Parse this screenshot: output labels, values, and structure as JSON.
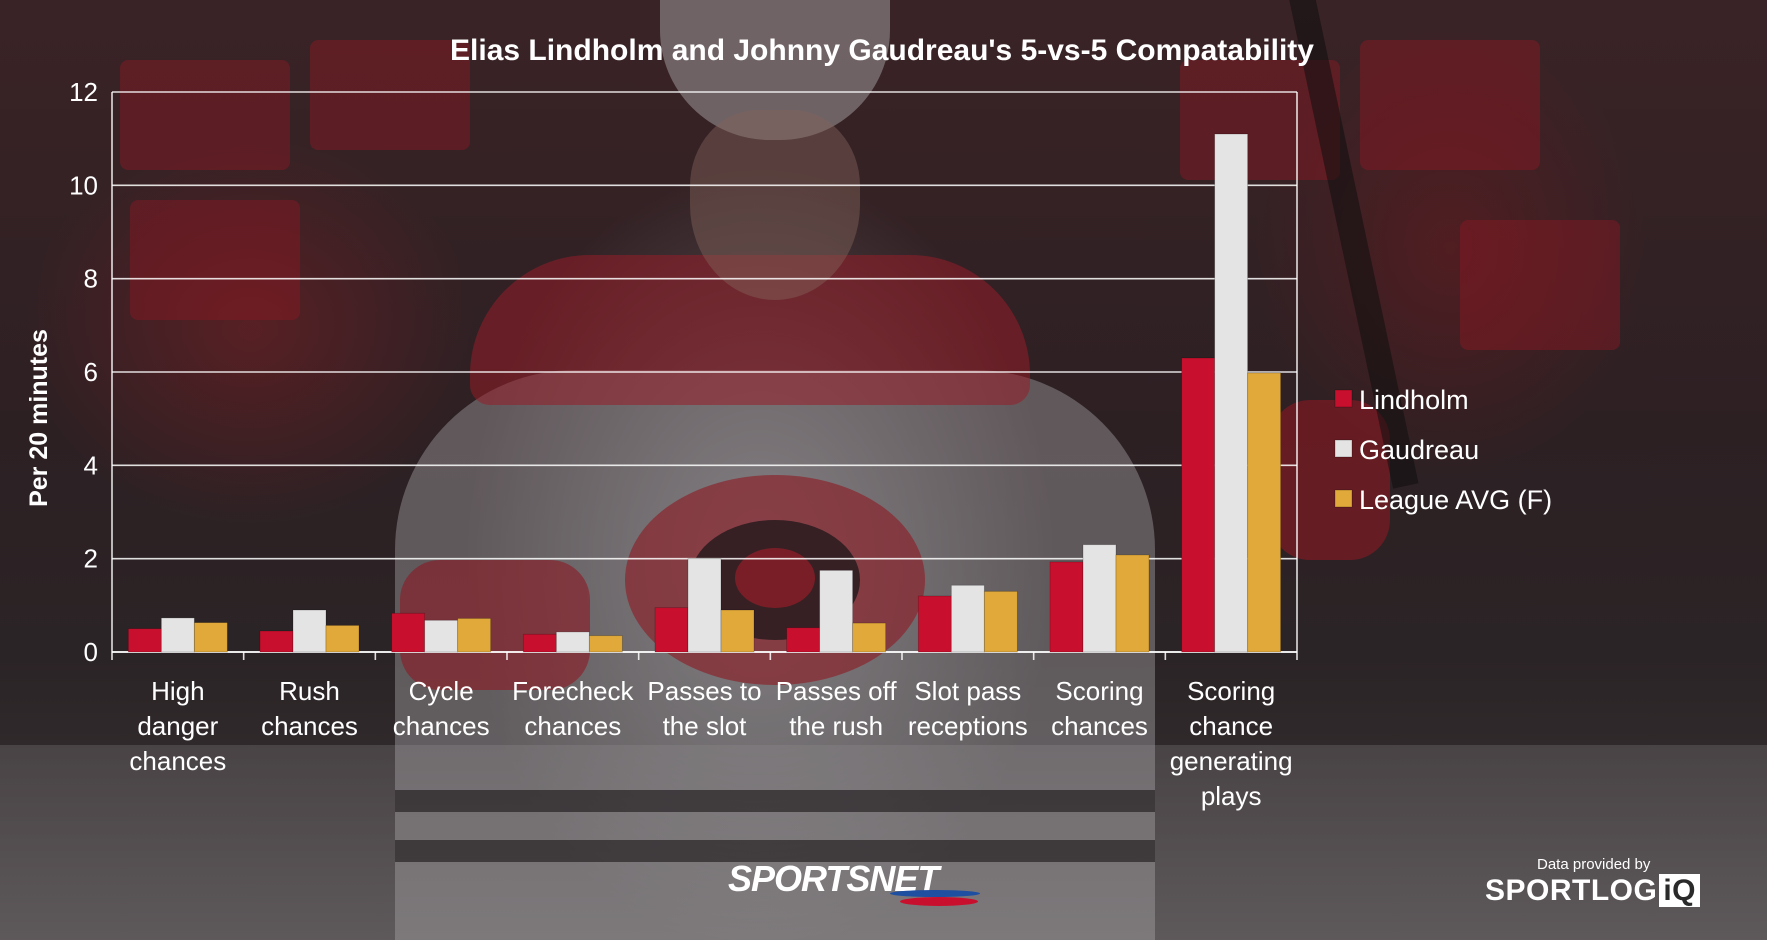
{
  "chart_data": {
    "type": "bar",
    "title": "Elias Lindholm and Johnny Gaudreau's 5-vs-5 Compatability",
    "xlabel": "",
    "ylabel": "Per 20 minutes",
    "ylim": [
      0,
      12
    ],
    "yticks": [
      0,
      2,
      4,
      6,
      8,
      10,
      12
    ],
    "grid": true,
    "legend_position": "right",
    "categories": [
      [
        "High",
        "danger",
        "chances"
      ],
      [
        "Rush",
        "chances"
      ],
      [
        "Cycle",
        "chances"
      ],
      [
        "Forecheck",
        "chances"
      ],
      [
        "Passes to",
        "the slot"
      ],
      [
        "Passes off",
        "the rush"
      ],
      [
        "Slot pass",
        "receptions"
      ],
      [
        "Scoring",
        "chances"
      ],
      [
        "Scoring",
        "chance",
        "generating",
        "plays"
      ]
    ],
    "series": [
      {
        "name": "Lindholm",
        "color": "#c8102e",
        "values": [
          0.5,
          0.45,
          0.83,
          0.38,
          0.95,
          0.52,
          1.2,
          1.93,
          6.3
        ]
      },
      {
        "name": "Gaudreau",
        "color": "#e4e4e4",
        "values": [
          0.73,
          0.9,
          0.68,
          0.43,
          2.0,
          1.75,
          1.43,
          2.3,
          11.1
        ]
      },
      {
        "name": "League AVG (F)",
        "color": "#e0a93a",
        "values": [
          0.63,
          0.57,
          0.72,
          0.35,
          0.9,
          0.62,
          1.3,
          2.08,
          5.98
        ]
      }
    ]
  },
  "branding": {
    "broadcaster": "SPORTSNET",
    "provider_caption": "Data provided by",
    "provider_logo_main": "SPORTLOG",
    "provider_logo_badge": "iQ"
  }
}
